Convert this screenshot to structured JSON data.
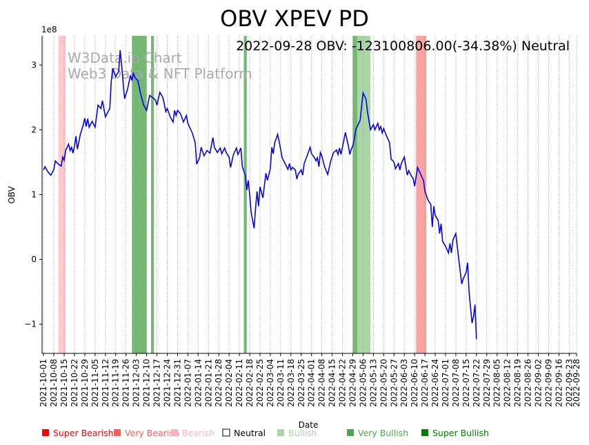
{
  "chart_data": {
    "type": "line",
    "title": "OBV XPEV PD",
    "subtitle": "2022-09-28 OBV: -123100806.00(-34.38%) Neutral",
    "watermark": [
      "W3Data.io Chart",
      "Web3 Data & NFT Platform"
    ],
    "xlabel": "Date",
    "ylabel": "OBV",
    "y_scale_label": "1e8",
    "ylim": [
      -1.45,
      3.45
    ],
    "y_ticks": [
      -1,
      0,
      1,
      2,
      3
    ],
    "y_tick_labels": [
      "−1",
      "0",
      "1",
      "2",
      "3"
    ],
    "x_tick_labels": [
      "2021-10-01",
      "2021-10-08",
      "2021-10-15",
      "2021-10-22",
      "2021-10-29",
      "2021-11-05",
      "2021-11-12",
      "2021-11-19",
      "2021-11-26",
      "2021-12-03",
      "2021-12-10",
      "2021-12-17",
      "2021-12-24",
      "2021-12-31",
      "2022-01-07",
      "2022-01-14",
      "2022-01-21",
      "2022-01-28",
      "2022-02-04",
      "2022-02-11",
      "2022-02-18",
      "2022-02-25",
      "2022-03-04",
      "2022-03-11",
      "2022-03-18",
      "2022-03-25",
      "2022-04-01",
      "2022-04-08",
      "2022-04-15",
      "2022-04-22",
      "2022-04-29",
      "2022-05-06",
      "2022-05-13",
      "2022-05-20",
      "2022-05-27",
      "2022-06-03",
      "2022-06-10",
      "2022-06-17",
      "2022-06-24",
      "2022-07-01",
      "2022-07-08",
      "2022-07-15",
      "2022-07-22",
      "2022-07-29",
      "2022-08-05",
      "2022-08-12",
      "2022-08-19",
      "2022-08-26",
      "2022-09-02",
      "2022-09-09",
      "2022-09-16",
      "2022-09-23",
      "2022-09-28"
    ],
    "x_tick_dates": [
      "2021-10-01",
      "2021-10-08",
      "2021-10-15",
      "2021-10-22",
      "2021-10-29",
      "2021-11-05",
      "2021-11-12",
      "2021-11-19",
      "2021-11-26",
      "2021-12-03",
      "2021-12-10",
      "2021-12-17",
      "2021-12-24",
      "2021-12-31",
      "2022-01-07",
      "2022-01-14",
      "2022-01-21",
      "2022-01-28",
      "2022-02-04",
      "2022-02-11",
      "2022-02-18",
      "2022-02-25",
      "2022-03-04",
      "2022-03-11",
      "2022-03-18",
      "2022-03-25",
      "2022-04-01",
      "2022-04-08",
      "2022-04-15",
      "2022-04-22",
      "2022-04-29",
      "2022-05-06",
      "2022-05-13",
      "2022-05-20",
      "2022-05-27",
      "2022-06-03",
      "2022-06-10",
      "2022-06-17",
      "2022-06-24",
      "2022-07-01",
      "2022-07-08",
      "2022-07-15",
      "2022-07-22",
      "2022-07-29",
      "2022-08-05",
      "2022-08-12",
      "2022-08-19",
      "2022-08-26",
      "2022-09-02",
      "2022-09-09",
      "2022-09-16",
      "2022-09-23",
      "2022-09-28"
    ],
    "xlim": [
      "2021-09-30",
      "2022-09-28"
    ],
    "grid": "vertical dotted at each x tick",
    "line_color": "#0000ee",
    "series": [
      {
        "values": [
          [
            "2021-10-01",
            1.38
          ],
          [
            "2021-10-02",
            1.43
          ],
          [
            "2021-10-04",
            1.35
          ],
          [
            "2021-10-06",
            1.3
          ],
          [
            "2021-10-08",
            1.39
          ],
          [
            "2021-10-09",
            1.52
          ],
          [
            "2021-10-11",
            1.47
          ],
          [
            "2021-10-13",
            1.44
          ],
          [
            "2021-10-14",
            1.58
          ],
          [
            "2021-10-15",
            1.53
          ],
          [
            "2021-10-16",
            1.68
          ],
          [
            "2021-10-18",
            1.78
          ],
          [
            "2021-10-19",
            1.68
          ],
          [
            "2021-10-20",
            1.73
          ],
          [
            "2021-10-21",
            1.64
          ],
          [
            "2021-10-22",
            1.75
          ],
          [
            "2021-10-23",
            1.9
          ],
          [
            "2021-10-24",
            1.7
          ],
          [
            "2021-10-26",
            1.93
          ],
          [
            "2021-10-28",
            2.08
          ],
          [
            "2021-10-29",
            2.18
          ],
          [
            "2021-10-30",
            2.05
          ],
          [
            "2021-10-31",
            2.17
          ],
          [
            "2021-11-01",
            2.04
          ],
          [
            "2021-11-03",
            2.13
          ],
          [
            "2021-11-05",
            2.04
          ],
          [
            "2021-11-07",
            2.38
          ],
          [
            "2021-11-09",
            2.33
          ],
          [
            "2021-11-10",
            2.45
          ],
          [
            "2021-11-12",
            2.2
          ],
          [
            "2021-11-15",
            2.33
          ],
          [
            "2021-11-16",
            2.75
          ],
          [
            "2021-11-17",
            2.95
          ],
          [
            "2021-11-19",
            2.82
          ],
          [
            "2021-11-21",
            2.9
          ],
          [
            "2021-11-22",
            3.23
          ],
          [
            "2021-11-23",
            3.0
          ],
          [
            "2021-11-25",
            2.48
          ],
          [
            "2021-11-27",
            2.62
          ],
          [
            "2021-11-29",
            2.84
          ],
          [
            "2021-11-30",
            2.76
          ],
          [
            "2021-12-01",
            2.87
          ],
          [
            "2021-12-02",
            2.81
          ],
          [
            "2021-12-04",
            2.76
          ],
          [
            "2021-12-06",
            2.55
          ],
          [
            "2021-12-08",
            2.38
          ],
          [
            "2021-12-10",
            2.3
          ],
          [
            "2021-12-12",
            2.53
          ],
          [
            "2021-12-14",
            2.5
          ],
          [
            "2021-12-16",
            2.46
          ],
          [
            "2021-12-17",
            2.38
          ],
          [
            "2021-12-19",
            2.58
          ],
          [
            "2021-12-21",
            2.5
          ],
          [
            "2021-12-22",
            2.4
          ],
          [
            "2021-12-23",
            2.28
          ],
          [
            "2021-12-24",
            2.33
          ],
          [
            "2021-12-26",
            2.2
          ],
          [
            "2021-12-28",
            2.12
          ],
          [
            "2021-12-29",
            2.3
          ],
          [
            "2021-12-30",
            2.22
          ],
          [
            "2021-12-31",
            2.3
          ],
          [
            "2022-01-02",
            2.25
          ],
          [
            "2022-01-04",
            2.12
          ],
          [
            "2022-01-06",
            2.22
          ],
          [
            "2022-01-07",
            2.1
          ],
          [
            "2022-01-10",
            1.95
          ],
          [
            "2022-01-12",
            1.8
          ],
          [
            "2022-01-13",
            1.47
          ],
          [
            "2022-01-15",
            1.57
          ],
          [
            "2022-01-16",
            1.73
          ],
          [
            "2022-01-18",
            1.6
          ],
          [
            "2022-01-20",
            1.68
          ],
          [
            "2022-01-22",
            1.64
          ],
          [
            "2022-01-24",
            1.88
          ],
          [
            "2022-01-25",
            1.73
          ],
          [
            "2022-01-27",
            1.65
          ],
          [
            "2022-01-29",
            1.72
          ],
          [
            "2022-01-30",
            1.63
          ],
          [
            "2022-02-01",
            1.72
          ],
          [
            "2022-02-02",
            1.65
          ],
          [
            "2022-02-04",
            1.58
          ],
          [
            "2022-02-05",
            1.42
          ],
          [
            "2022-02-07",
            1.62
          ],
          [
            "2022-02-09",
            1.72
          ],
          [
            "2022-02-10",
            1.62
          ],
          [
            "2022-02-12",
            1.72
          ],
          [
            "2022-02-13",
            1.43
          ],
          [
            "2022-02-15",
            1.3
          ],
          [
            "2022-02-16",
            1.07
          ],
          [
            "2022-02-17",
            1.22
          ],
          [
            "2022-02-18",
            1.0
          ],
          [
            "2022-02-19",
            0.72
          ],
          [
            "2022-02-21",
            0.48
          ],
          [
            "2022-02-22",
            0.8
          ],
          [
            "2022-02-23",
            1.05
          ],
          [
            "2022-02-24",
            0.82
          ],
          [
            "2022-02-25",
            1.12
          ],
          [
            "2022-02-27",
            0.95
          ],
          [
            "2022-03-01",
            1.33
          ],
          [
            "2022-03-02",
            1.22
          ],
          [
            "2022-03-04",
            1.4
          ],
          [
            "2022-03-05",
            1.73
          ],
          [
            "2022-03-06",
            1.63
          ],
          [
            "2022-03-07",
            1.8
          ],
          [
            "2022-03-09",
            1.93
          ],
          [
            "2022-03-11",
            1.7
          ],
          [
            "2022-03-12",
            1.57
          ],
          [
            "2022-03-14",
            1.48
          ],
          [
            "2022-03-16",
            1.39
          ],
          [
            "2022-03-17",
            1.48
          ],
          [
            "2022-03-18",
            1.38
          ],
          [
            "2022-03-19",
            1.42
          ],
          [
            "2022-03-21",
            1.38
          ],
          [
            "2022-03-22",
            1.24
          ],
          [
            "2022-03-23",
            1.32
          ],
          [
            "2022-03-25",
            1.38
          ],
          [
            "2022-03-26",
            1.3
          ],
          [
            "2022-03-27",
            1.48
          ],
          [
            "2022-03-29",
            1.6
          ],
          [
            "2022-03-31",
            1.73
          ],
          [
            "2022-04-01",
            1.63
          ],
          [
            "2022-04-03",
            1.57
          ],
          [
            "2022-04-04",
            1.52
          ],
          [
            "2022-04-05",
            1.57
          ],
          [
            "2022-04-06",
            1.43
          ],
          [
            "2022-04-07",
            1.65
          ],
          [
            "2022-04-08",
            1.6
          ],
          [
            "2022-04-10",
            1.42
          ],
          [
            "2022-04-12",
            1.31
          ],
          [
            "2022-04-14",
            1.52
          ],
          [
            "2022-04-16",
            1.65
          ],
          [
            "2022-04-18",
            1.69
          ],
          [
            "2022-04-19",
            1.62
          ],
          [
            "2022-04-20",
            1.72
          ],
          [
            "2022-04-21",
            1.62
          ],
          [
            "2022-04-22",
            1.73
          ],
          [
            "2022-04-24",
            1.96
          ],
          [
            "2022-04-26",
            1.75
          ],
          [
            "2022-04-27",
            1.62
          ],
          [
            "2022-04-28",
            1.7
          ],
          [
            "2022-04-29",
            1.75
          ],
          [
            "2022-04-30",
            1.85
          ],
          [
            "2022-05-01",
            2.0
          ],
          [
            "2022-05-04",
            2.15
          ],
          [
            "2022-05-06",
            2.57
          ],
          [
            "2022-05-08",
            2.47
          ],
          [
            "2022-05-09",
            2.28
          ],
          [
            "2022-05-11",
            2.0
          ],
          [
            "2022-05-13",
            2.08
          ],
          [
            "2022-05-14",
            2.0
          ],
          [
            "2022-05-16",
            2.1
          ],
          [
            "2022-05-17",
            2.0
          ],
          [
            "2022-05-18",
            2.05
          ],
          [
            "2022-05-19",
            1.95
          ],
          [
            "2022-05-20",
            2.02
          ],
          [
            "2022-05-22",
            1.9
          ],
          [
            "2022-05-24",
            1.8
          ],
          [
            "2022-05-25",
            1.55
          ],
          [
            "2022-05-27",
            1.5
          ],
          [
            "2022-05-28",
            1.4
          ],
          [
            "2022-05-30",
            1.48
          ],
          [
            "2022-05-31",
            1.38
          ],
          [
            "2022-06-01",
            1.48
          ],
          [
            "2022-06-03",
            1.58
          ],
          [
            "2022-06-05",
            1.3
          ],
          [
            "2022-06-06",
            1.37
          ],
          [
            "2022-06-08",
            1.28
          ],
          [
            "2022-06-09",
            1.25
          ],
          [
            "2022-06-10",
            1.13
          ],
          [
            "2022-06-12",
            1.42
          ],
          [
            "2022-06-14",
            1.32
          ],
          [
            "2022-06-16",
            1.22
          ],
          [
            "2022-06-17",
            1.05
          ],
          [
            "2022-06-19",
            0.92
          ],
          [
            "2022-06-21",
            0.85
          ],
          [
            "2022-06-22",
            0.5
          ],
          [
            "2022-06-23",
            0.82
          ],
          [
            "2022-06-24",
            0.68
          ],
          [
            "2022-06-26",
            0.6
          ],
          [
            "2022-06-27",
            0.4
          ],
          [
            "2022-06-28",
            0.55
          ],
          [
            "2022-06-29",
            0.28
          ],
          [
            "2022-07-01",
            0.2
          ],
          [
            "2022-07-03",
            0.1
          ],
          [
            "2022-07-04",
            0.25
          ],
          [
            "2022-07-05",
            0.1
          ],
          [
            "2022-07-06",
            0.3
          ],
          [
            "2022-07-08",
            0.4
          ],
          [
            "2022-07-10",
            0.0
          ],
          [
            "2022-07-12",
            -0.38
          ],
          [
            "2022-07-13",
            -0.3
          ],
          [
            "2022-07-15",
            -0.2
          ],
          [
            "2022-07-16",
            -0.05
          ],
          [
            "2022-07-17",
            -0.5
          ],
          [
            "2022-07-19",
            -0.98
          ],
          [
            "2022-07-20",
            -0.88
          ],
          [
            "2022-07-21",
            -0.7
          ],
          [
            "2022-07-22",
            -1.23
          ]
        ]
      }
    ],
    "bands": [
      {
        "from": "2021-10-11",
        "to": "2021-10-15",
        "category": "Super Bearish"
      },
      {
        "from": "2021-11-30",
        "to": "2021-12-09",
        "category": "Very Bullish"
      },
      {
        "from": "2021-12-13",
        "to": "2021-12-14",
        "category": "Very Bullish"
      },
      {
        "from": "2022-02-14",
        "to": "2022-02-15",
        "category": "Very Bullish"
      },
      {
        "from": "2022-04-29",
        "to": "2022-05-02",
        "category": "Very Bullish"
      },
      {
        "from": "2022-05-02",
        "to": "2022-05-10",
        "category": "Bullish"
      },
      {
        "from": "2022-06-11",
        "to": "2022-06-17",
        "category": "Very Bearish"
      }
    ],
    "legend_position": "bottom",
    "legend": [
      {
        "label": "Super Bearish",
        "color": "#ff0000"
      },
      {
        "label": "Very Bearish",
        "color": "#ff5a5a"
      },
      {
        "label": "Bearish",
        "color": "#ffb3b3"
      },
      {
        "label": "Neutral",
        "color": "#000000"
      },
      {
        "label": "Bullish",
        "color": "#a9d6a4"
      },
      {
        "label": "Very Bullish",
        "color": "#4fa34f"
      },
      {
        "label": "Super Bullish",
        "color": "#008000"
      }
    ],
    "band_colors": {
      "Super Bearish": "#ffc9cc",
      "Very Bearish": "#f9a3a3",
      "Bearish": "#ffdede",
      "Bullish": "#a9d6a4",
      "Very Bullish": "#73b873",
      "Super Bullish": "#008000"
    }
  }
}
